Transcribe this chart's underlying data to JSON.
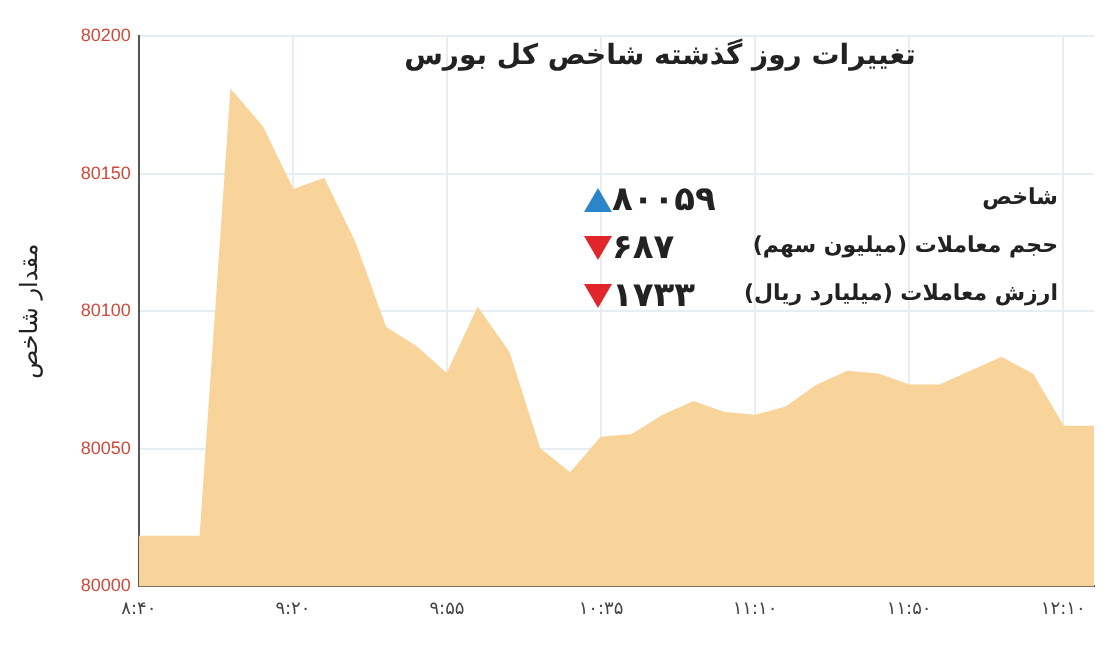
{
  "chart_data": {
    "type": "area",
    "title": "تغییرات روز گذشته شاخص کل بورس",
    "ylabel": "مقدار شاخص",
    "categories": [
      "۸:۴۰",
      null,
      null,
      null,
      null,
      "۹:۲۰",
      null,
      null,
      null,
      null,
      "۹:۵۵",
      null,
      null,
      null,
      null,
      "۱۰:۳۵",
      null,
      null,
      null,
      null,
      "۱۱:۱۰",
      null,
      null,
      null,
      null,
      "۱۱:۵۰",
      null,
      null,
      null,
      null,
      "۱۲:۱۰",
      null
    ],
    "series": [
      {
        "color": "#f9d49a",
        "values": [
          80018,
          80018,
          80018,
          80180,
          80167,
          80144,
          80148,
          80125,
          80094,
          80087,
          80077,
          80101,
          80085,
          80050,
          80041,
          80054,
          80055,
          80062,
          80067,
          80063,
          80062,
          80065,
          80073,
          80078,
          80077,
          80073,
          80073,
          80078,
          80083,
          80077,
          80058,
          80058
        ]
      }
    ],
    "ylim": [
      80000,
      80200
    ],
    "yticks": [
      80000,
      80050,
      80100,
      80150,
      80200
    ],
    "grid": true,
    "annotations": [
      "شاخص",
      "۸۰۰۵۹",
      "حجم معاملات (میلیون سهم)",
      "۶۸۷",
      "ارزش معاملات (میلیارد ریال)",
      "۱۷۳۳"
    ]
  }
}
